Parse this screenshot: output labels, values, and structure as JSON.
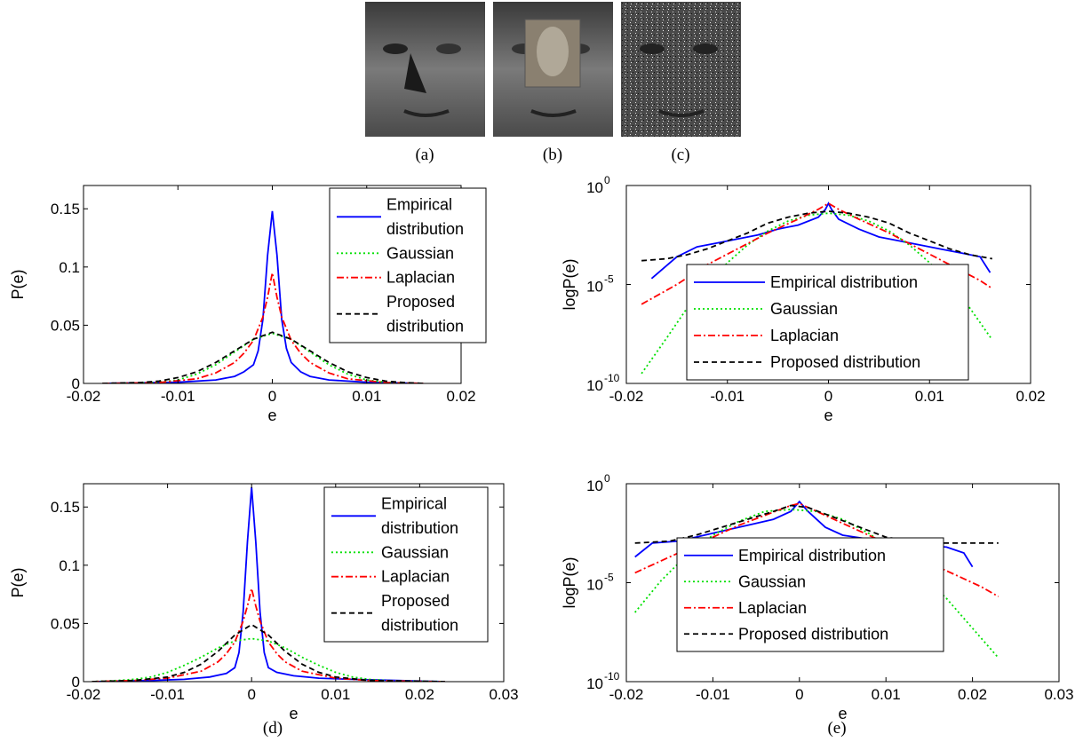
{
  "captions": {
    "a": "(a)",
    "b": "(b)",
    "c": "(c)",
    "d": "(d)",
    "e": "(e)"
  },
  "face_images": [
    {
      "name": "face-shadow-image",
      "caption": "(a)"
    },
    {
      "name": "face-occluded-image",
      "caption": "(b)"
    },
    {
      "name": "face-noise-image",
      "caption": "(c)"
    }
  ],
  "styles": {
    "empirical": {
      "color": "#0000ff",
      "dash": ""
    },
    "gaussian": {
      "color": "#00e000",
      "dash": "2,3"
    },
    "laplacian": {
      "color": "#ff0000",
      "dash": "8,3,2,3"
    },
    "proposed": {
      "color": "#000000",
      "dash": "6,4"
    }
  },
  "chart_data": [
    {
      "id": "top-left",
      "type": "line",
      "scale": "linear",
      "xlabel": "e",
      "ylabel": "P(e)",
      "xlim": [
        -0.02,
        0.02
      ],
      "ylim": [
        0,
        0.17
      ],
      "xticks": [
        -0.02,
        -0.01,
        0,
        0.01,
        0.02
      ],
      "xtick_labels": [
        "-0.02",
        "-0.01",
        "0",
        "0.01",
        "0.02"
      ],
      "yticks": [
        0,
        0.05,
        0.1,
        0.15
      ],
      "ytick_labels": [
        "0",
        "0.05",
        "0.1",
        "0.15"
      ],
      "legend_position": "top-right",
      "legend": [
        {
          "key": "empirical",
          "lines": [
            "Empirical",
            "distribution"
          ]
        },
        {
          "key": "gaussian",
          "lines": [
            "Gaussian"
          ]
        },
        {
          "key": "laplacian",
          "lines": [
            "Laplacian"
          ]
        },
        {
          "key": "proposed",
          "lines": [
            "Proposed",
            "distribution"
          ]
        }
      ],
      "series": [
        {
          "key": "empirical",
          "x": [
            -0.018,
            -0.01,
            -0.006,
            -0.004,
            -0.003,
            -0.002,
            -0.0015,
            -0.001,
            -0.0005,
            0,
            0.0005,
            0.001,
            0.0015,
            0.002,
            0.003,
            0.004,
            0.006,
            0.01,
            0.016
          ],
          "y": [
            0,
            0.001,
            0.003,
            0.006,
            0.01,
            0.016,
            0.028,
            0.055,
            0.11,
            0.148,
            0.11,
            0.055,
            0.03,
            0.018,
            0.01,
            0.006,
            0.003,
            0.001,
            0
          ]
        },
        {
          "key": "gaussian",
          "x": [
            -0.018,
            -0.014,
            -0.012,
            -0.01,
            -0.008,
            -0.006,
            -0.004,
            -0.002,
            0,
            0.002,
            0.004,
            0.006,
            0.008,
            0.01,
            0.012,
            0.014,
            0.016
          ],
          "y": [
            0,
            0.0003,
            0.001,
            0.003,
            0.008,
            0.016,
            0.027,
            0.038,
            0.043,
            0.038,
            0.027,
            0.016,
            0.008,
            0.003,
            0.001,
            0.0003,
            0
          ]
        },
        {
          "key": "laplacian",
          "x": [
            -0.018,
            -0.012,
            -0.008,
            -0.006,
            -0.004,
            -0.003,
            -0.002,
            -0.001,
            -0.0005,
            0,
            0.0005,
            0.001,
            0.002,
            0.003,
            0.004,
            0.006,
            0.008,
            0.012,
            0.016
          ],
          "y": [
            0,
            0.0008,
            0.004,
            0.009,
            0.018,
            0.026,
            0.037,
            0.057,
            0.074,
            0.095,
            0.074,
            0.057,
            0.037,
            0.026,
            0.018,
            0.009,
            0.004,
            0.0008,
            0
          ]
        },
        {
          "key": "proposed",
          "x": [
            -0.018,
            -0.014,
            -0.012,
            -0.01,
            -0.008,
            -0.006,
            -0.004,
            -0.002,
            0,
            0.002,
            0.004,
            0.006,
            0.008,
            0.01,
            0.012,
            0.014,
            0.016
          ],
          "y": [
            0,
            0.0008,
            0.002,
            0.005,
            0.01,
            0.018,
            0.028,
            0.038,
            0.044,
            0.038,
            0.028,
            0.018,
            0.01,
            0.005,
            0.002,
            0.0008,
            0
          ]
        }
      ]
    },
    {
      "id": "top-right",
      "type": "line",
      "scale": "log",
      "xlabel": "e",
      "ylabel": "logP(e)",
      "xlim": [
        -0.02,
        0.02
      ],
      "ylim_log10": [
        -10,
        0
      ],
      "xticks": [
        -0.02,
        -0.01,
        0,
        0.01,
        0.02
      ],
      "xtick_labels": [
        "-0.02",
        "-0.01",
        "0",
        "0.01",
        "0.02"
      ],
      "yticks_log10": [
        0,
        -5,
        -10
      ],
      "ytick_labels": [
        "10",
        "10",
        "10"
      ],
      "ytick_exponents": [
        "0",
        "-5",
        "-10"
      ],
      "legend_position": "bottom-center",
      "legend": [
        {
          "key": "empirical",
          "lines": [
            "Empirical distribution"
          ]
        },
        {
          "key": "gaussian",
          "lines": [
            "Gaussian"
          ]
        },
        {
          "key": "laplacian",
          "lines": [
            "Laplacian"
          ]
        },
        {
          "key": "proposed",
          "lines": [
            "Proposed distribution"
          ]
        }
      ],
      "series": [
        {
          "key": "empirical",
          "x": [
            -0.0175,
            -0.015,
            -0.013,
            -0.011,
            -0.009,
            -0.007,
            -0.005,
            -0.003,
            -0.001,
            -0.0003,
            0,
            0.0003,
            0.001,
            0.003,
            0.005,
            0.007,
            0.009,
            0.011,
            0.013,
            0.015,
            0.016
          ],
          "log10y": [
            -4.7,
            -3.6,
            -3.1,
            -2.9,
            -2.7,
            -2.5,
            -2.2,
            -2.0,
            -1.6,
            -1.2,
            -0.9,
            -1.2,
            -1.7,
            -2.2,
            -2.6,
            -2.8,
            -3.0,
            -3.2,
            -3.4,
            -3.6,
            -4.4
          ]
        },
        {
          "key": "gaussian",
          "x": [
            -0.0185,
            -0.016,
            -0.014,
            -0.012,
            -0.01,
            -0.008,
            -0.006,
            -0.004,
            -0.002,
            0,
            0.002,
            0.004,
            0.006,
            0.008,
            0.01,
            0.012,
            0.014,
            0.0162
          ],
          "log10y": [
            -9.5,
            -7.7,
            -6.2,
            -5.0,
            -3.9,
            -3.0,
            -2.3,
            -1.8,
            -1.5,
            -1.4,
            -1.5,
            -1.8,
            -2.3,
            -3.0,
            -3.9,
            -5.0,
            -6.2,
            -7.8
          ]
        },
        {
          "key": "laplacian",
          "x": [
            -0.0185,
            -0.015,
            -0.012,
            -0.009,
            -0.006,
            -0.003,
            -0.001,
            0,
            0.001,
            0.003,
            0.006,
            0.009,
            0.012,
            0.015,
            0.0162
          ],
          "log10y": [
            -6.0,
            -5.0,
            -4.0,
            -3.2,
            -2.4,
            -1.7,
            -1.2,
            -0.9,
            -1.2,
            -1.7,
            -2.4,
            -3.2,
            -4.0,
            -4.8,
            -5.2
          ]
        },
        {
          "key": "proposed",
          "x": [
            -0.0185,
            -0.016,
            -0.014,
            -0.012,
            -0.01,
            -0.008,
            -0.006,
            -0.004,
            -0.002,
            0,
            0.002,
            0.004,
            0.006,
            0.008,
            0.01,
            0.012,
            0.014,
            0.0162
          ],
          "log10y": [
            -3.8,
            -3.7,
            -3.5,
            -3.2,
            -2.8,
            -2.4,
            -1.9,
            -1.6,
            -1.4,
            -1.3,
            -1.4,
            -1.6,
            -1.9,
            -2.4,
            -2.8,
            -3.2,
            -3.5,
            -3.7
          ]
        }
      ]
    },
    {
      "id": "bottom-left",
      "type": "line",
      "scale": "linear",
      "xlabel": "e",
      "ylabel": "P(e)",
      "xlim": [
        -0.02,
        0.03
      ],
      "ylim": [
        0,
        0.17
      ],
      "xticks": [
        -0.02,
        -0.01,
        0,
        0.01,
        0.02,
        0.03
      ],
      "xtick_labels": [
        "-0.02",
        "-0.01",
        "0",
        "0.01",
        "0.02",
        "0.03"
      ],
      "yticks": [
        0,
        0.05,
        0.1,
        0.15
      ],
      "ytick_labels": [
        "0",
        "0.05",
        "0.1",
        "0.15"
      ],
      "legend_position": "top-right",
      "legend": [
        {
          "key": "empirical",
          "lines": [
            "Empirical",
            "distribution"
          ]
        },
        {
          "key": "gaussian",
          "lines": [
            "Gaussian"
          ]
        },
        {
          "key": "laplacian",
          "lines": [
            "Laplacian"
          ]
        },
        {
          "key": "proposed",
          "lines": [
            "Proposed",
            "distribution"
          ]
        }
      ],
      "series": [
        {
          "key": "empirical",
          "x": [
            -0.019,
            -0.012,
            -0.008,
            -0.005,
            -0.003,
            -0.002,
            -0.0015,
            -0.001,
            -0.0005,
            0,
            0.0005,
            0.001,
            0.0015,
            0.002,
            0.003,
            0.005,
            0.008,
            0.012,
            0.023
          ],
          "y": [
            0,
            0.001,
            0.002,
            0.004,
            0.007,
            0.012,
            0.025,
            0.06,
            0.12,
            0.167,
            0.12,
            0.06,
            0.025,
            0.012,
            0.008,
            0.005,
            0.003,
            0.002,
            0
          ]
        },
        {
          "key": "gaussian",
          "x": [
            -0.019,
            -0.016,
            -0.014,
            -0.012,
            -0.01,
            -0.008,
            -0.006,
            -0.004,
            -0.002,
            0,
            0.002,
            0.004,
            0.006,
            0.008,
            0.01,
            0.012,
            0.014,
            0.016,
            0.023
          ],
          "y": [
            0,
            0.001,
            0.002,
            0.004,
            0.008,
            0.014,
            0.021,
            0.029,
            0.035,
            0.037,
            0.035,
            0.029,
            0.021,
            0.014,
            0.008,
            0.004,
            0.002,
            0.001,
            0
          ]
        },
        {
          "key": "laplacian",
          "x": [
            -0.019,
            -0.014,
            -0.01,
            -0.006,
            -0.004,
            -0.003,
            -0.002,
            -0.001,
            -0.0005,
            0,
            0.0005,
            0.001,
            0.002,
            0.003,
            0.004,
            0.006,
            0.01,
            0.014,
            0.023
          ],
          "y": [
            0,
            0.001,
            0.003,
            0.009,
            0.017,
            0.024,
            0.034,
            0.052,
            0.065,
            0.08,
            0.065,
            0.052,
            0.034,
            0.024,
            0.017,
            0.009,
            0.003,
            0.001,
            0
          ]
        },
        {
          "key": "proposed",
          "x": [
            -0.019,
            -0.014,
            -0.01,
            -0.008,
            -0.006,
            -0.004,
            -0.002,
            0,
            0.002,
            0.004,
            0.006,
            0.008,
            0.01,
            0.014,
            0.023
          ],
          "y": [
            0,
            0.001,
            0.004,
            0.008,
            0.015,
            0.026,
            0.04,
            0.049,
            0.04,
            0.026,
            0.015,
            0.008,
            0.004,
            0.001,
            0
          ]
        }
      ]
    },
    {
      "id": "bottom-right",
      "type": "line",
      "scale": "log",
      "xlabel": "e",
      "ylabel": "logP(e)",
      "xlim": [
        -0.02,
        0.03
      ],
      "ylim_log10": [
        -10,
        0
      ],
      "xticks": [
        -0.02,
        -0.01,
        0,
        0.01,
        0.02,
        0.03
      ],
      "xtick_labels": [
        "-0.02",
        "-0.01",
        "0",
        "0.01",
        "0.02",
        "0.03"
      ],
      "yticks_log10": [
        0,
        -5,
        -10
      ],
      "ytick_labels": [
        "10",
        "10",
        "10"
      ],
      "ytick_exponents": [
        "0",
        "-5",
        "-10"
      ],
      "legend_position": "bottom-left",
      "legend": [
        {
          "key": "empirical",
          "lines": [
            "Empirical distribution"
          ]
        },
        {
          "key": "gaussian",
          "lines": [
            "Gaussian"
          ]
        },
        {
          "key": "laplacian",
          "lines": [
            "Laplacian"
          ]
        },
        {
          "key": "proposed",
          "lines": [
            "Proposed distribution"
          ]
        }
      ],
      "series": [
        {
          "key": "empirical",
          "x": [
            -0.019,
            -0.017,
            -0.014,
            -0.011,
            -0.008,
            -0.005,
            -0.003,
            -0.001,
            0,
            0.001,
            0.003,
            0.005,
            0.008,
            0.011,
            0.014,
            0.017,
            0.019,
            0.02
          ],
          "log10y": [
            -3.7,
            -3.0,
            -2.9,
            -2.6,
            -2.3,
            -2.0,
            -1.8,
            -1.4,
            -0.9,
            -1.4,
            -2.2,
            -2.6,
            -2.8,
            -3.0,
            -3.1,
            -3.2,
            -3.5,
            -4.2
          ]
        },
        {
          "key": "gaussian",
          "x": [
            -0.019,
            -0.016,
            -0.013,
            -0.01,
            -0.007,
            -0.004,
            -0.001,
            0.002,
            0.005,
            0.008,
            0.011,
            0.014,
            0.017,
            0.02,
            0.023
          ],
          "log10y": [
            -6.5,
            -4.9,
            -3.6,
            -2.6,
            -1.9,
            -1.4,
            -1.3,
            -1.4,
            -1.8,
            -2.5,
            -3.4,
            -4.5,
            -5.8,
            -7.3,
            -8.8
          ]
        },
        {
          "key": "laplacian",
          "x": [
            -0.019,
            -0.015,
            -0.011,
            -0.007,
            -0.004,
            -0.001,
            0,
            0.002,
            0.005,
            0.009,
            0.013,
            0.017,
            0.021,
            0.023
          ],
          "log10y": [
            -4.5,
            -3.7,
            -2.9,
            -2.1,
            -1.6,
            -1.1,
            -1.0,
            -1.4,
            -2.0,
            -2.8,
            -3.6,
            -4.4,
            -5.2,
            -5.7
          ]
        },
        {
          "key": "proposed",
          "x": [
            -0.019,
            -0.015,
            -0.012,
            -0.009,
            -0.006,
            -0.003,
            -0.001,
            0.001,
            0.004,
            0.007,
            0.01,
            0.013,
            0.016,
            0.02,
            0.023
          ],
          "log10y": [
            -3.0,
            -2.9,
            -2.6,
            -2.2,
            -1.8,
            -1.4,
            -1.1,
            -1.2,
            -1.7,
            -2.2,
            -2.7,
            -2.9,
            -3.0,
            -3.0,
            -3.0
          ]
        }
      ]
    }
  ]
}
